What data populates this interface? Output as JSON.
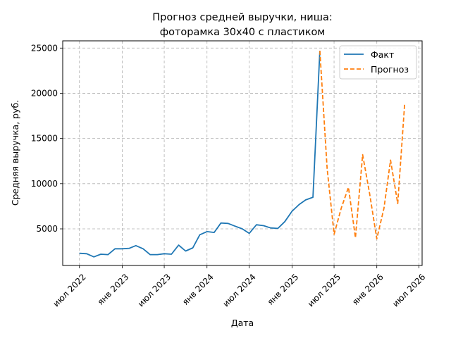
{
  "chart_data": {
    "type": "line",
    "title_lines": [
      "Прогноз средней выручки, ниша:",
      "фоторамка 30x40 с пластиком"
    ],
    "xlabel": "Дата",
    "ylabel": "Средняя выручка, руб.",
    "x_ticks": [
      {
        "date": "2022-07-01",
        "label": "июл 2022"
      },
      {
        "date": "2023-01-01",
        "label": "янв 2023"
      },
      {
        "date": "2023-07-01",
        "label": "июл 2023"
      },
      {
        "date": "2024-01-01",
        "label": "янв 2024"
      },
      {
        "date": "2024-07-01",
        "label": "июл 2024"
      },
      {
        "date": "2025-01-01",
        "label": "янв 2025"
      },
      {
        "date": "2025-07-01",
        "label": "июл 2025"
      },
      {
        "date": "2026-01-01",
        "label": "янв 2026"
      },
      {
        "date": "2026-07-01",
        "label": "июл 2026"
      }
    ],
    "y_ticks": [
      {
        "value": 5000,
        "label": "5000"
      },
      {
        "value": 10000,
        "label": "10000"
      },
      {
        "value": 15000,
        "label": "15000"
      },
      {
        "value": 20000,
        "label": "20000"
      },
      {
        "value": 25000,
        "label": "25000"
      }
    ],
    "xlim": [
      "2022-04-20",
      "2026-07-15"
    ],
    "ylim": [
      950,
      25800
    ],
    "grid": true,
    "legend_position": "top-right",
    "series": [
      {
        "name": "Факт",
        "color": "#1f77b4",
        "style": "solid",
        "points": [
          [
            "2022-07-01",
            2300
          ],
          [
            "2022-08-01",
            2250
          ],
          [
            "2022-09-01",
            1900
          ],
          [
            "2022-10-01",
            2200
          ],
          [
            "2022-11-01",
            2150
          ],
          [
            "2022-12-01",
            2800
          ],
          [
            "2023-01-01",
            2800
          ],
          [
            "2023-02-01",
            2850
          ],
          [
            "2023-03-01",
            3150
          ],
          [
            "2023-04-01",
            2800
          ],
          [
            "2023-05-01",
            2150
          ],
          [
            "2023-06-01",
            2150
          ],
          [
            "2023-07-01",
            2250
          ],
          [
            "2023-08-01",
            2200
          ],
          [
            "2023-09-01",
            3200
          ],
          [
            "2023-10-01",
            2550
          ],
          [
            "2023-11-01",
            2900
          ],
          [
            "2023-12-01",
            4350
          ],
          [
            "2024-01-01",
            4700
          ],
          [
            "2024-02-01",
            4600
          ],
          [
            "2024-03-01",
            5650
          ],
          [
            "2024-04-01",
            5600
          ],
          [
            "2024-05-01",
            5300
          ],
          [
            "2024-06-01",
            5000
          ],
          [
            "2024-07-01",
            4500
          ],
          [
            "2024-08-01",
            5450
          ],
          [
            "2024-09-01",
            5350
          ],
          [
            "2024-10-01",
            5100
          ],
          [
            "2024-11-01",
            5050
          ],
          [
            "2024-12-01",
            5800
          ],
          [
            "2025-01-01",
            6950
          ],
          [
            "2025-02-01",
            7700
          ],
          [
            "2025-03-01",
            8200
          ],
          [
            "2025-04-01",
            8500
          ],
          [
            "2025-05-01",
            24700
          ]
        ]
      },
      {
        "name": "Прогноз",
        "color": "#ff7f0e",
        "style": "dashed",
        "points": [
          [
            "2025-05-01",
            24700
          ],
          [
            "2025-06-01",
            11700
          ],
          [
            "2025-07-01",
            4400
          ],
          [
            "2025-08-01",
            7300
          ],
          [
            "2025-09-01",
            9600
          ],
          [
            "2025-10-01",
            4000
          ],
          [
            "2025-11-01",
            13200
          ],
          [
            "2025-12-01",
            8900
          ],
          [
            "2026-01-01",
            3900
          ],
          [
            "2026-02-01",
            7300
          ],
          [
            "2026-03-01",
            12600
          ],
          [
            "2026-04-01",
            7800
          ],
          [
            "2026-05-01",
            18900
          ]
        ]
      }
    ]
  }
}
